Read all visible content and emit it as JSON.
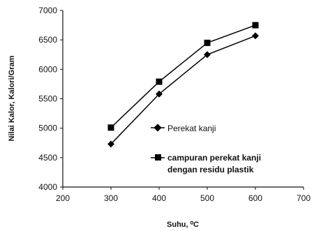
{
  "chart_data": {
    "type": "line",
    "x": [
      300,
      400,
      500,
      600
    ],
    "series": [
      {
        "name": "Perekat kanji",
        "marker": "diamond",
        "values": [
          4730,
          5580,
          6250,
          6570
        ]
      },
      {
        "name": "campuran perekat kanji dengan residu plastik",
        "marker": "square",
        "values": [
          5010,
          5790,
          6450,
          6750
        ]
      }
    ],
    "legend_labels": {
      "s1": "Perekat kanji",
      "s2_line1": "campuran perekat kanji",
      "s2_line2": "dengan residu plastik"
    },
    "xlabel": "Suhu, ⁰C",
    "ylabel": "Nilai Kalor, Kalori/Gram",
    "xlim": [
      200,
      700
    ],
    "ylim": [
      4000,
      7000
    ],
    "xticks": [
      200,
      300,
      400,
      500,
      600,
      700
    ],
    "yticks": [
      4000,
      4500,
      5000,
      5500,
      6000,
      6500,
      7000
    ],
    "grid": false,
    "legend_position": "inside-right"
  }
}
